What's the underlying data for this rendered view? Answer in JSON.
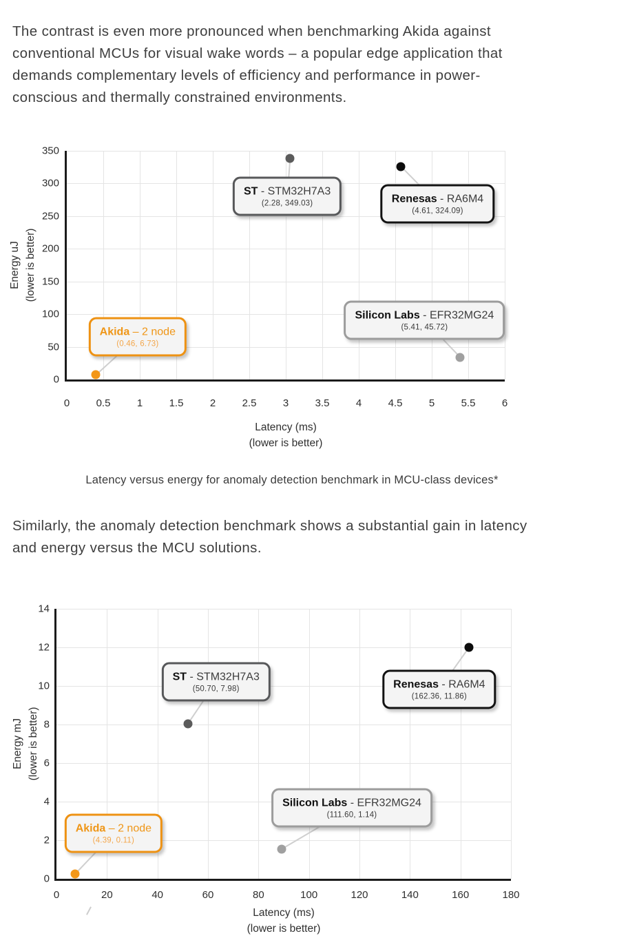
{
  "page": {
    "paragraph1": "The contrast is even more pronounced when benchmarking Akida against\nconventional MCUs for visual wake words – a popular edge application that\ndemands complementary levels of efficiency and performance in power-\nconscious and thermally constrained environments.",
    "caption": "Latency versus energy for anomaly detection benchmark in MCU-class devices*",
    "paragraph2": "Similarly, the anomaly detection benchmark shows a substantial gain in latency\nand energy versus the MCU solutions."
  },
  "colors": {
    "accent_orange": "#ef9617",
    "orange_coords": "#f3a64a",
    "dot_orange": "#f39718",
    "dot_darkgray": "#5b5b5b",
    "dot_black": "#0c0c0c",
    "dot_gray": "#a0a0a0",
    "box_background": "#f4f4f4",
    "gridline": "#e4e4e4",
    "axis": "#1b1b1b",
    "leader_line": "#cfcfcf",
    "text": "#3e3e3e"
  },
  "chart_data": [
    {
      "id": "uj",
      "type": "scatter",
      "title": "",
      "xlabel": "Latency (ms)",
      "xlabel_note": "(lower is better)",
      "ylabel": "Energy uJ",
      "ylabel_note": "(lower is better)",
      "xlim": [
        0,
        6
      ],
      "ylim": [
        0,
        350
      ],
      "grid": true,
      "x_ticks": [
        0,
        0.5,
        1,
        1.5,
        2,
        2.5,
        3,
        3.5,
        4,
        4.5,
        5,
        5.5,
        6
      ],
      "y_ticks": [
        0,
        50,
        100,
        150,
        200,
        250,
        300,
        350
      ],
      "points": [
        {
          "vendor": "Akida",
          "dash": "–",
          "model": "2 node",
          "coords_label": "(0.46, 6.73)",
          "x": 0.46,
          "y": 6.73,
          "color": "orange",
          "dot": {
            "x": 0.4,
            "y": 7
          },
          "callout": {
            "x": 0.97,
            "y": 65
          }
        },
        {
          "vendor": "ST",
          "dash": "-",
          "model": "STM32H7A3",
          "coords_label": "(2.28, 349.03)",
          "x": 2.28,
          "y": 349.03,
          "color": "darkgray",
          "dot": {
            "x": 3.06,
            "y": 338
          },
          "callout": {
            "x": 3.02,
            "y": 280
          }
        },
        {
          "vendor": "Renesas",
          "dash": "-",
          "model": "RA6M4",
          "coords_label": "(4.61, 324.09)",
          "x": 4.61,
          "y": 324.09,
          "color": "black",
          "dot": {
            "x": 4.58,
            "y": 326
          },
          "callout": {
            "x": 5.08,
            "y": 269
          }
        },
        {
          "vendor": "Silicon Labs",
          "dash": "-",
          "model": "EFR32MG24",
          "coords_label": "(5.41, 45.72)",
          "x": 5.41,
          "y": 45.72,
          "color": "gray",
          "dot": {
            "x": 5.39,
            "y": 34
          },
          "callout": {
            "x": 4.9,
            "y": 91
          }
        }
      ]
    },
    {
      "id": "mj",
      "type": "scatter",
      "title": "",
      "xlabel": "Latency (ms)",
      "xlabel_note": "(lower is better)",
      "ylabel": "Energy mJ",
      "ylabel_note": "(lower is better)",
      "xlim": [
        0,
        180
      ],
      "ylim": [
        0,
        14
      ],
      "grid": true,
      "x_ticks": [
        0,
        20,
        40,
        60,
        80,
        100,
        120,
        140,
        160,
        180
      ],
      "y_ticks": [
        0,
        2,
        4,
        6,
        8,
        10,
        12,
        14
      ],
      "points": [
        {
          "vendor": "Akida",
          "dash": "–",
          "model": "2 node",
          "coords_label": "(4.39, 0.11)",
          "x": 4.39,
          "y": 0.11,
          "color": "orange",
          "dot": {
            "x": 7.4,
            "y": 0.25
          },
          "callout": {
            "x": 22.6,
            "y": 2.34
          }
        },
        {
          "vendor": "ST",
          "dash": "-",
          "model": "STM32H7A3",
          "coords_label": "(50.70, 7.98)",
          "x": 50.7,
          "y": 7.98,
          "color": "darkgray",
          "dot": {
            "x": 52.0,
            "y": 8.03
          },
          "callout": {
            "x": 63.2,
            "y": 10.2
          }
        },
        {
          "vendor": "Renesas",
          "dash": "-",
          "model": "RA6M4",
          "coords_label": "(162.36, 11.86)",
          "x": 162.36,
          "y": 11.86,
          "color": "black",
          "dot": {
            "x": 163.4,
            "y": 12.0
          },
          "callout": {
            "x": 151.6,
            "y": 9.82
          }
        },
        {
          "vendor": "Silicon Labs",
          "dash": "-",
          "model": "EFR32MG24",
          "coords_label": "(111.60, 1.14)",
          "x": 111.6,
          "y": 1.14,
          "color": "gray",
          "dot": {
            "x": 89.3,
            "y": 1.55
          },
          "callout": {
            "x": 117.0,
            "y": 3.68
          }
        }
      ]
    }
  ]
}
